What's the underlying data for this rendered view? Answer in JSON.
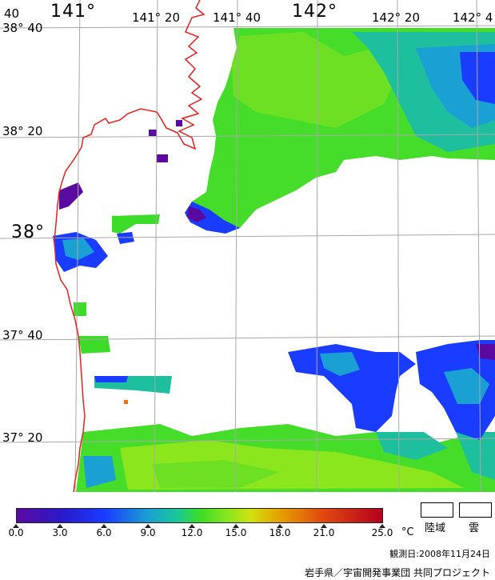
{
  "map": {
    "lon_labels": [
      "40",
      "141°",
      "141° 20",
      "141° 40",
      "142°",
      "142° 20",
      "142° 4"
    ],
    "lat_labels": [
      "38° 40",
      "38° 20",
      "38°",
      "37° 40",
      "37° 20"
    ],
    "colors": {
      "purple": "#5a0aa0",
      "blue": "#1a3cff",
      "cyan": "#1aa0d2",
      "teal": "#18c896",
      "green": "#3cdc28",
      "yellowgreen": "#8ce61e",
      "coast": "#e8201e",
      "grid": "#a8a8a8"
    }
  },
  "colorbar": {
    "ticks": [
      "0.0",
      "3.0",
      "6.0",
      "9.0",
      "12.0",
      "15.0",
      "18.0",
      "21.0",
      "25.0"
    ],
    "unit": "°C"
  },
  "legend": {
    "land_label": "陸域",
    "cloud_label": "雲"
  },
  "footer": {
    "observation_date": "観測日:2008年11月24日",
    "credit": "岩手県／宇宙開発事業団 共同プロジェクト"
  }
}
